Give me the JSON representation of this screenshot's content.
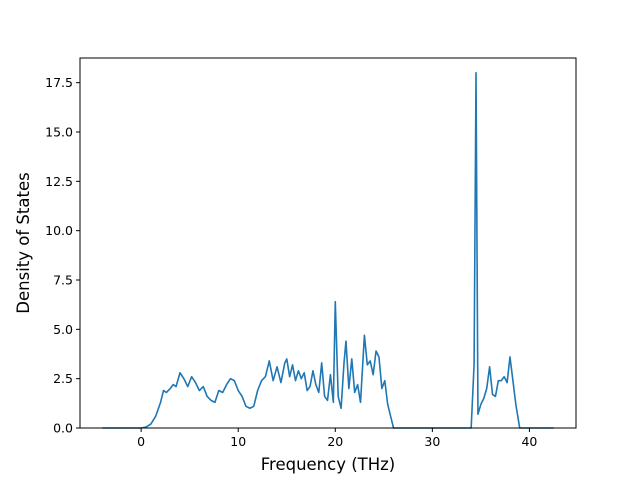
{
  "chart_data": {
    "type": "line",
    "title": "",
    "xlabel": "Frequency (THz)",
    "ylabel": "Density of States",
    "xlim": [
      -6.3,
      44.8
    ],
    "ylim": [
      0,
      18.75
    ],
    "xticks": [
      0,
      10,
      20,
      30,
      40
    ],
    "xtick_labels": [
      "0",
      "10",
      "20",
      "30",
      "40"
    ],
    "yticks": [
      0,
      2.5,
      5,
      7.5,
      10,
      12.5,
      15,
      17.5
    ],
    "ytick_labels": [
      "0.0",
      "2.5",
      "5.0",
      "7.5",
      "10.0",
      "12.5",
      "15.0",
      "17.5"
    ],
    "grid": false,
    "line_color": "#1f77b4",
    "series": [
      {
        "x": [
          -4.0,
          -2.0,
          0.0,
          0.5,
          1.0,
          1.5,
          2.0,
          2.3,
          2.6,
          3.0,
          3.3,
          3.6,
          4.0,
          4.4,
          4.8,
          5.2,
          5.6,
          6.0,
          6.4,
          6.8,
          7.2,
          7.6,
          8.0,
          8.4,
          8.8,
          9.2,
          9.6,
          10.0,
          10.4,
          10.8,
          11.2,
          11.6,
          12.0,
          12.4,
          12.8,
          13.2,
          13.6,
          14.0,
          14.4,
          14.8,
          15.0,
          15.3,
          15.6,
          15.9,
          16.2,
          16.5,
          16.8,
          17.1,
          17.4,
          17.7,
          18.0,
          18.3,
          18.6,
          18.9,
          19.2,
          19.5,
          19.8,
          20.0,
          20.3,
          20.6,
          20.9,
          21.1,
          21.4,
          21.7,
          22.0,
          22.3,
          22.6,
          23.0,
          23.3,
          23.6,
          23.9,
          24.2,
          24.5,
          24.8,
          25.1,
          25.4,
          25.7,
          26.0,
          26.5,
          27.0,
          30.0,
          33.0,
          34.0,
          34.3,
          34.5,
          34.7,
          35.0,
          35.3,
          35.6,
          35.9,
          36.2,
          36.5,
          36.8,
          37.1,
          37.4,
          37.7,
          38.0,
          38.3,
          38.6,
          39.0,
          39.3,
          40.0,
          42.5
        ],
        "y": [
          0.0,
          0.0,
          0.0,
          0.05,
          0.2,
          0.6,
          1.3,
          1.9,
          1.8,
          2.0,
          2.2,
          2.1,
          2.8,
          2.5,
          2.1,
          2.6,
          2.3,
          1.9,
          2.1,
          1.6,
          1.4,
          1.3,
          1.9,
          1.8,
          2.2,
          2.5,
          2.4,
          1.9,
          1.6,
          1.1,
          1.0,
          1.1,
          1.9,
          2.4,
          2.6,
          3.4,
          2.4,
          3.1,
          2.3,
          3.3,
          3.5,
          2.6,
          3.2,
          2.4,
          2.9,
          2.5,
          2.8,
          1.9,
          2.1,
          2.9,
          2.2,
          1.8,
          3.3,
          1.6,
          1.4,
          2.7,
          1.3,
          6.4,
          1.6,
          1.0,
          3.3,
          4.4,
          2.0,
          3.5,
          1.8,
          2.2,
          1.3,
          4.7,
          3.2,
          3.4,
          2.7,
          3.9,
          3.6,
          2.0,
          2.4,
          1.2,
          0.6,
          0.0,
          0.0,
          0.0,
          0.0,
          0.0,
          0.0,
          3.2,
          18.0,
          0.7,
          1.2,
          1.5,
          2.0,
          3.1,
          1.7,
          1.6,
          2.4,
          2.4,
          2.6,
          2.3,
          3.6,
          2.4,
          1.2,
          0.0,
          0.0,
          0.0,
          0.0
        ]
      }
    ]
  }
}
